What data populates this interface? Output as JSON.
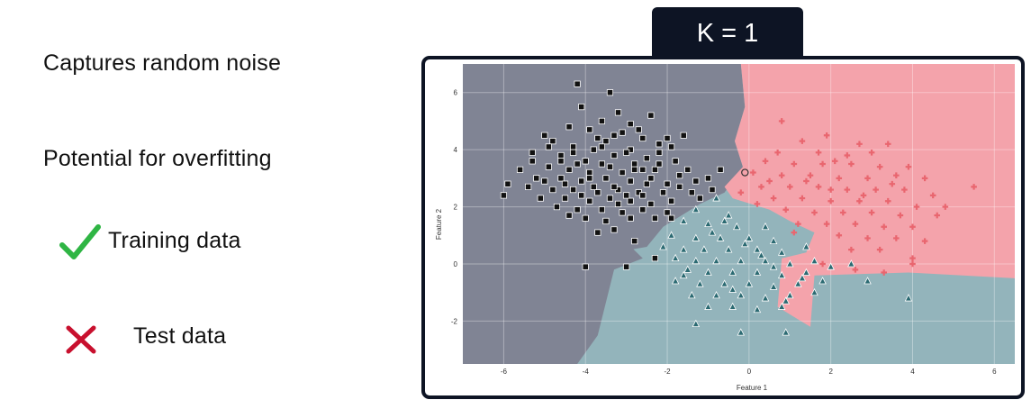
{
  "left_panel": {
    "line1": "Captures random noise",
    "line2": "Potential for overfitting",
    "training_label": "Training data",
    "test_label": "Test data",
    "check_icon_color": "#2fb544",
    "cross_icon_color": "#c8102e"
  },
  "badge": {
    "label": "K = 1"
  },
  "colors": {
    "frame": "#0d1424",
    "region_class0": "#808494",
    "region_class1": "#93b4bb",
    "region_class2": "#f4a3ab",
    "marker_class0": "#111111",
    "marker_class1": "#2b6a72",
    "marker_class2": "#e9666f"
  },
  "chart_data": {
    "type": "scatter",
    "xlabel": "Feature 1",
    "ylabel": "Feature 2",
    "xlim": [
      -7,
      6.5
    ],
    "ylim": [
      -3.5,
      7
    ],
    "xticks": [
      -6,
      -4,
      -2,
      0,
      2,
      4,
      6
    ],
    "yticks": [
      -2,
      0,
      2,
      4,
      6
    ],
    "grid": true,
    "decision_regions": [
      {
        "class": 0,
        "polygon": [
          [
            -7,
            7
          ],
          [
            -0.2,
            7
          ],
          [
            -0.1,
            5.5
          ],
          [
            -0.35,
            4.3
          ],
          [
            -0.15,
            3.4
          ],
          [
            -0.6,
            2.5
          ],
          [
            -1.2,
            2.1
          ],
          [
            -2.1,
            1.3
          ],
          [
            -2.5,
            0.6
          ],
          [
            -2.9,
            0.5
          ],
          [
            -3.1,
            0.9
          ],
          [
            -2.6,
            0.2
          ],
          [
            -3.3,
            -0.2
          ],
          [
            -3.7,
            -2.5
          ],
          [
            -4.2,
            -3.5
          ],
          [
            -7,
            -3.5
          ]
        ]
      },
      {
        "class": 2,
        "polygon": [
          [
            -0.2,
            7
          ],
          [
            6.5,
            7
          ],
          [
            6.5,
            -0.5
          ],
          [
            3.9,
            -0.3
          ],
          [
            1.6,
            -0.4
          ],
          [
            1.5,
            -2.2
          ],
          [
            0.7,
            -1.5
          ],
          [
            0.8,
            0.2
          ],
          [
            1.4,
            0.4
          ],
          [
            1.6,
            1.1
          ],
          [
            1.0,
            1.5
          ],
          [
            0.5,
            1.9
          ],
          [
            -0.4,
            2.3
          ],
          [
            -0.6,
            2.7
          ],
          [
            -0.15,
            3.4
          ],
          [
            -0.35,
            4.3
          ],
          [
            -0.1,
            5.5
          ]
        ]
      }
    ],
    "series": [
      {
        "class": 0,
        "marker": "square",
        "points": [
          [
            -4.2,
            6.3
          ],
          [
            -3.4,
            6.0
          ],
          [
            -4.1,
            5.5
          ],
          [
            -3.2,
            5.3
          ],
          [
            -2.4,
            5.2
          ],
          [
            -3.6,
            5.0
          ],
          [
            -2.9,
            4.9
          ],
          [
            -3.9,
            4.7
          ],
          [
            -4.4,
            4.8
          ],
          [
            -1.6,
            4.5
          ],
          [
            -3.1,
            4.6
          ],
          [
            -5.0,
            4.5
          ],
          [
            -2.6,
            4.4
          ],
          [
            -4.8,
            4.3
          ],
          [
            -3.5,
            4.3
          ],
          [
            -2.2,
            4.2
          ],
          [
            -4.3,
            4.1
          ],
          [
            -3.8,
            4.0
          ],
          [
            -2.9,
            4.0
          ],
          [
            -1.9,
            4.1
          ],
          [
            -5.3,
            3.9
          ],
          [
            -4.6,
            3.8
          ],
          [
            -3.3,
            3.8
          ],
          [
            -2.5,
            3.7
          ],
          [
            -4.0,
            3.6
          ],
          [
            -3.6,
            3.5
          ],
          [
            -2.8,
            3.5
          ],
          [
            -1.8,
            3.6
          ],
          [
            -5.6,
            3.3
          ],
          [
            -4.9,
            3.4
          ],
          [
            -4.4,
            3.3
          ],
          [
            -3.9,
            3.2
          ],
          [
            -3.1,
            3.2
          ],
          [
            -2.3,
            3.3
          ],
          [
            -1.5,
            3.3
          ],
          [
            -0.7,
            3.3
          ],
          [
            -5.2,
            3.0
          ],
          [
            -4.6,
            3.0
          ],
          [
            -4.1,
            2.9
          ],
          [
            -3.5,
            3.0
          ],
          [
            -2.9,
            2.9
          ],
          [
            -2.5,
            2.8
          ],
          [
            -2.0,
            2.8
          ],
          [
            -1.3,
            2.9
          ],
          [
            -5.9,
            2.8
          ],
          [
            -5.4,
            2.7
          ],
          [
            -4.8,
            2.6
          ],
          [
            -4.3,
            2.6
          ],
          [
            -3.7,
            2.5
          ],
          [
            -3.2,
            2.6
          ],
          [
            -2.7,
            2.5
          ],
          [
            -2.1,
            2.5
          ],
          [
            -1.4,
            2.5
          ],
          [
            -0.9,
            2.6
          ],
          [
            -6.0,
            2.4
          ],
          [
            -5.1,
            2.3
          ],
          [
            -4.5,
            2.3
          ],
          [
            -3.9,
            2.2
          ],
          [
            -3.4,
            2.3
          ],
          [
            -2.9,
            2.2
          ],
          [
            -2.4,
            2.1
          ],
          [
            -1.9,
            2.2
          ],
          [
            -4.7,
            2.0
          ],
          [
            -4.2,
            1.9
          ],
          [
            -3.6,
            1.9
          ],
          [
            -3.1,
            1.8
          ],
          [
            -2.6,
            1.9
          ],
          [
            -2.0,
            1.8
          ],
          [
            -4.0,
            1.6
          ],
          [
            -3.5,
            1.5
          ],
          [
            -2.9,
            1.6
          ],
          [
            -1.9,
            1.6
          ],
          [
            -3.7,
            1.1
          ],
          [
            -2.8,
            0.8
          ],
          [
            -2.3,
            0.2
          ],
          [
            -4.0,
            -0.1
          ],
          [
            -3.0,
            -0.1
          ],
          [
            -3.3,
            4.5
          ],
          [
            -2.7,
            4.7
          ],
          [
            -3.7,
            4.4
          ],
          [
            -4.9,
            4.1
          ],
          [
            -2.2,
            3.9
          ],
          [
            -3.0,
            3.9
          ],
          [
            -4.2,
            3.5
          ],
          [
            -3.4,
            3.4
          ],
          [
            -2.6,
            3.3
          ],
          [
            -1.7,
            3.1
          ],
          [
            -4.6,
            3.6
          ],
          [
            -3.9,
            3.0
          ],
          [
            -2.4,
            3.0
          ],
          [
            -5.0,
            2.9
          ],
          [
            -3.3,
            2.7
          ],
          [
            -1.7,
            2.7
          ],
          [
            -4.1,
            2.4
          ],
          [
            -2.6,
            2.4
          ],
          [
            -1.2,
            2.3
          ],
          [
            -3.2,
            2.1
          ],
          [
            -4.4,
            1.7
          ],
          [
            -2.3,
            1.6
          ],
          [
            -3.3,
            1.2
          ],
          [
            -3.8,
            2.7
          ],
          [
            -2.2,
            3.5
          ],
          [
            -1.0,
            3.0
          ],
          [
            -4.5,
            2.8
          ],
          [
            -3.0,
            2.4
          ],
          [
            -5.3,
            3.6
          ],
          [
            -2.0,
            4.4
          ],
          [
            -3.6,
            4.1
          ],
          [
            -4.3,
            3.9
          ],
          [
            -2.8,
            3.3
          ]
        ]
      },
      {
        "class": 1,
        "marker": "triangle",
        "points": [
          [
            -0.8,
            2.3
          ],
          [
            -1.3,
            1.9
          ],
          [
            -0.5,
            1.7
          ],
          [
            -1.6,
            1.5
          ],
          [
            -1.0,
            1.4
          ],
          [
            -0.3,
            1.3
          ],
          [
            0.4,
            1.3
          ],
          [
            -1.9,
            1.0
          ],
          [
            -1.3,
            0.9
          ],
          [
            -0.7,
            0.9
          ],
          [
            0.0,
            0.9
          ],
          [
            0.6,
            0.8
          ],
          [
            -2.1,
            0.6
          ],
          [
            -1.6,
            0.5
          ],
          [
            -1.1,
            0.5
          ],
          [
            -0.5,
            0.5
          ],
          [
            0.2,
            0.5
          ],
          [
            0.8,
            0.4
          ],
          [
            1.4,
            0.6
          ],
          [
            -1.8,
            0.2
          ],
          [
            -1.3,
            0.1
          ],
          [
            -0.8,
            0.1
          ],
          [
            -0.2,
            0.1
          ],
          [
            0.4,
            0.1
          ],
          [
            1.0,
            0.0
          ],
          [
            1.6,
            0.1
          ],
          [
            -1.5,
            -0.2
          ],
          [
            -1.0,
            -0.3
          ],
          [
            -0.4,
            -0.3
          ],
          [
            0.2,
            -0.3
          ],
          [
            0.8,
            -0.4
          ],
          [
            1.4,
            -0.3
          ],
          [
            2.0,
            -0.1
          ],
          [
            -1.8,
            -0.6
          ],
          [
            -1.2,
            -0.7
          ],
          [
            -0.6,
            -0.7
          ],
          [
            0.0,
            -0.7
          ],
          [
            0.6,
            -0.8
          ],
          [
            1.2,
            -0.7
          ],
          [
            1.8,
            -0.6
          ],
          [
            -1.4,
            -1.1
          ],
          [
            -0.8,
            -1.1
          ],
          [
            -0.2,
            -1.1
          ],
          [
            0.4,
            -1.2
          ],
          [
            1.0,
            -1.1
          ],
          [
            1.6,
            -1.0
          ],
          [
            -1.0,
            -1.5
          ],
          [
            -0.4,
            -1.5
          ],
          [
            0.2,
            -1.6
          ],
          [
            0.8,
            -1.5
          ],
          [
            -1.3,
            -2.1
          ],
          [
            -0.2,
            -2.4
          ],
          [
            0.9,
            -2.4
          ],
          [
            2.5,
            0.0
          ],
          [
            2.9,
            -0.6
          ],
          [
            3.9,
            -1.2
          ],
          [
            -0.9,
            1.1
          ],
          [
            -0.1,
            0.7
          ],
          [
            0.6,
            -0.1
          ],
          [
            -0.4,
            -0.9
          ],
          [
            0.9,
            -1.3
          ],
          [
            -1.6,
            -0.4
          ],
          [
            0.3,
            0.3
          ],
          [
            1.3,
            -0.5
          ],
          [
            -0.6,
            1.5
          ]
        ]
      },
      {
        "class": 2,
        "marker": "plus",
        "points": [
          [
            0.8,
            5.0
          ],
          [
            1.9,
            4.5
          ],
          [
            1.3,
            4.3
          ],
          [
            2.7,
            4.2
          ],
          [
            3.4,
            4.2
          ],
          [
            0.7,
            3.9
          ],
          [
            1.7,
            3.9
          ],
          [
            2.4,
            3.8
          ],
          [
            3.0,
            3.9
          ],
          [
            0.4,
            3.6
          ],
          [
            1.1,
            3.5
          ],
          [
            1.8,
            3.5
          ],
          [
            2.5,
            3.5
          ],
          [
            3.2,
            3.4
          ],
          [
            3.9,
            3.4
          ],
          [
            0.1,
            3.2
          ],
          [
            0.8,
            3.1
          ],
          [
            1.5,
            3.1
          ],
          [
            2.2,
            3.0
          ],
          [
            2.9,
            3.0
          ],
          [
            3.6,
            3.1
          ],
          [
            4.3,
            3.0
          ],
          [
            0.3,
            2.7
          ],
          [
            1.0,
            2.7
          ],
          [
            1.7,
            2.7
          ],
          [
            2.4,
            2.6
          ],
          [
            3.1,
            2.6
          ],
          [
            3.8,
            2.6
          ],
          [
            4.5,
            2.4
          ],
          [
            0.6,
            2.3
          ],
          [
            1.3,
            2.3
          ],
          [
            2.0,
            2.2
          ],
          [
            2.7,
            2.2
          ],
          [
            3.4,
            2.2
          ],
          [
            4.1,
            2.0
          ],
          [
            0.9,
            1.9
          ],
          [
            1.6,
            1.8
          ],
          [
            2.3,
            1.8
          ],
          [
            3.0,
            1.8
          ],
          [
            3.7,
            1.7
          ],
          [
            1.2,
            1.4
          ],
          [
            1.9,
            1.4
          ],
          [
            2.6,
            1.4
          ],
          [
            3.3,
            1.3
          ],
          [
            4.0,
            1.3
          ],
          [
            2.2,
            1.0
          ],
          [
            2.9,
            0.9
          ],
          [
            3.6,
            0.9
          ],
          [
            4.3,
            0.8
          ],
          [
            2.5,
            0.5
          ],
          [
            3.2,
            0.5
          ],
          [
            4.0,
            0.2
          ],
          [
            1.8,
            0.0
          ],
          [
            2.6,
            -0.2
          ],
          [
            4.0,
            0.0
          ],
          [
            3.3,
            -0.3
          ],
          [
            5.5,
            2.7
          ],
          [
            4.8,
            2.0
          ],
          [
            2.1,
            3.6
          ],
          [
            1.4,
            2.9
          ],
          [
            2.8,
            2.4
          ],
          [
            0.5,
            2.9
          ],
          [
            1.1,
            1.1
          ],
          [
            3.5,
            2.8
          ],
          [
            2.0,
            2.6
          ],
          [
            -0.2,
            2.5
          ],
          [
            0.2,
            2.1
          ],
          [
            4.6,
            1.7
          ]
        ]
      }
    ],
    "test_point": [
      -0.1,
      3.2
    ]
  }
}
